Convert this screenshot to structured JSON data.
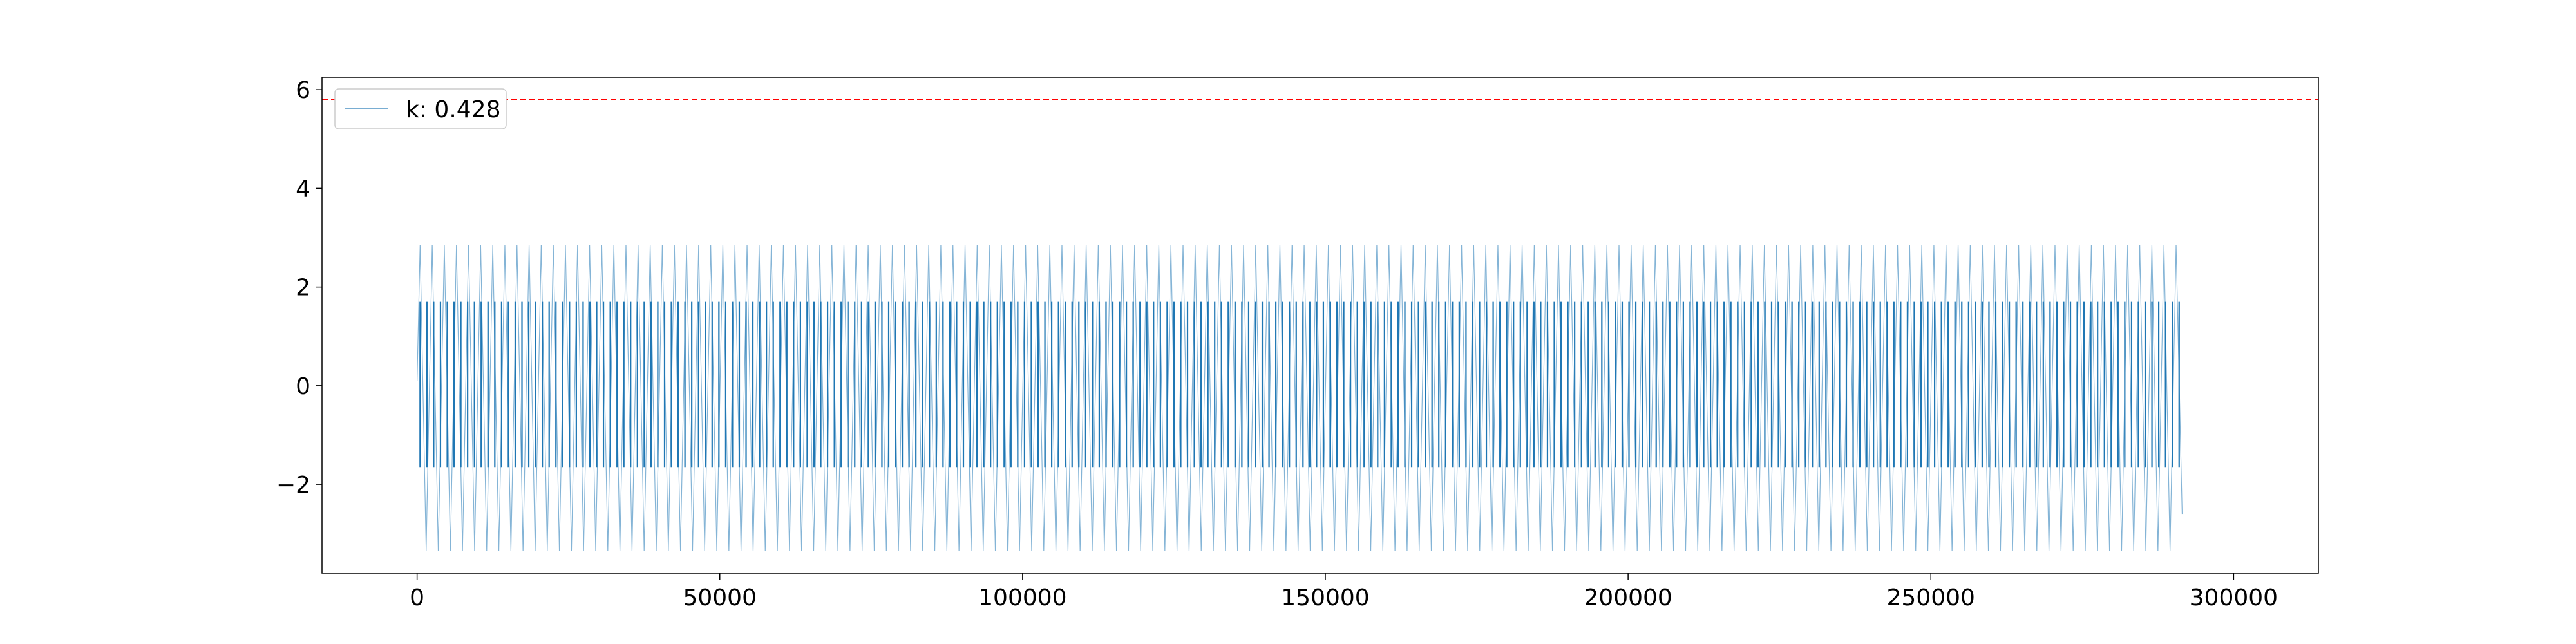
{
  "chart_data": {
    "type": "line",
    "title": "",
    "xlabel": "",
    "ylabel": "",
    "xlim": [
      -15700,
      314000
    ],
    "ylim": [
      -3.8,
      6.25
    ],
    "x_ticks": [
      0,
      50000,
      100000,
      150000,
      200000,
      250000,
      300000
    ],
    "y_ticks": [
      -2,
      0,
      2,
      4,
      6
    ],
    "y_tick_labels": [
      "−2",
      "0",
      "2",
      "4",
      "6"
    ],
    "x_tick_labels": [
      "0",
      "50000",
      "100000",
      "150000",
      "200000",
      "250000",
      "300000"
    ],
    "grid": false,
    "legend": {
      "position": "top-left",
      "entries": [
        "k: 0.428"
      ]
    },
    "reference_line": {
      "y": 5.8,
      "color": "#ff0000",
      "style": "dashed"
    },
    "series": [
      {
        "name": "k: 0.428",
        "color": "#1f77b4",
        "x_start": 0,
        "x_end": 291000,
        "oscillation_period": 2000,
        "envelope_max": 2.85,
        "envelope_min": -3.35,
        "dense_band_max": 1.7,
        "dense_band_min": -1.65
      }
    ]
  }
}
